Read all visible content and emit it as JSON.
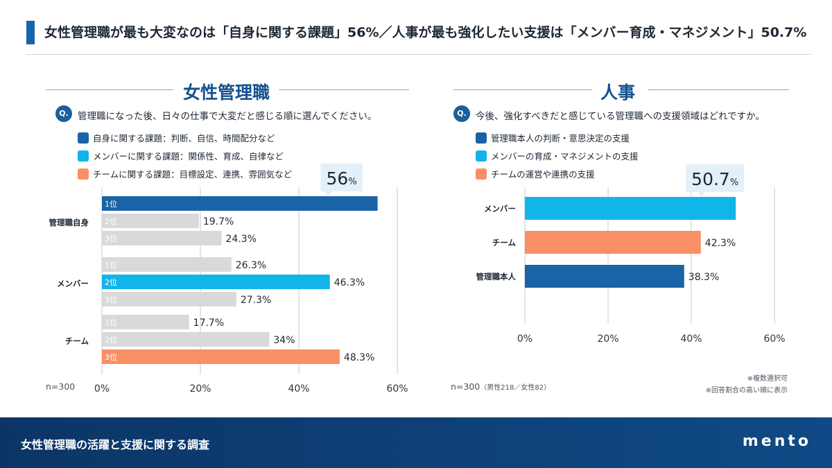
{
  "header": {
    "title": "女性管理職が最も大変なのは「自身に関する課題」56%／人事が最も強化したい支援は「メンバー育成・マネジメント」50.7%"
  },
  "left_panel": {
    "section_title": "女性管理職",
    "question_icon": "Q.",
    "question": "管理職になった後、日々の仕事で大変だと感じる順に選んでください。",
    "legend": [
      {
        "label": "自身に関する課題：判断、自信、時間配分など",
        "color": "#1a63a6"
      },
      {
        "label": "メンバーに関する課題：関係性、育成、自律など",
        "color": "#12b5ea"
      },
      {
        "label": "チームに関する課題：目標設定、連携、雰囲気など",
        "color": "#f98f64"
      }
    ],
    "sample_note": "n=300"
  },
  "right_panel": {
    "section_title": "人事",
    "question_icon": "Q.",
    "question": "今後、強化すべきだと感じている管理職への支援領域はどれですか。",
    "legend": [
      {
        "label": "管理職本人の判断・意思決定の支援",
        "color": "#1a63a6"
      },
      {
        "label": "メンバーの育成・マネジメントの支援",
        "color": "#12b5ea"
      },
      {
        "label": "チームの運営や連携の支援",
        "color": "#f98f64"
      }
    ],
    "sample_note": "n=300",
    "sample_breakdown": "（男性218／女性82）",
    "notes": [
      "※複数選択可",
      "※回答割合の高い順に表示"
    ]
  },
  "footer": {
    "title": "女性管理職の活躍と支援に関する調査",
    "logo": "mento"
  },
  "chart_data": [
    {
      "type": "bar",
      "orientation": "horizontal",
      "title": "女性管理職",
      "xlim": [
        0,
        60
      ],
      "x_ticks": [
        "0%",
        "20%",
        "40%",
        "60%"
      ],
      "groups": [
        {
          "name": "管理職自身",
          "bars": [
            {
              "rank": "1位",
              "value": 56,
              "label": "56",
              "unit": "%",
              "highlight": true,
              "color": "#1a63a6"
            },
            {
              "rank": "2位",
              "value": 19.7,
              "label": "19.7%",
              "highlight": false,
              "color": "#d9d9d9"
            },
            {
              "rank": "3位",
              "value": 24.3,
              "label": "24.3%",
              "highlight": false,
              "color": "#d9d9d9"
            }
          ]
        },
        {
          "name": "メンバー",
          "bars": [
            {
              "rank": "1位",
              "value": 26.3,
              "label": "26.3%",
              "highlight": false,
              "color": "#d9d9d9"
            },
            {
              "rank": "2位",
              "value": 46.3,
              "label": "46.3%",
              "highlight": true,
              "color": "#12b5ea"
            },
            {
              "rank": "3位",
              "value": 27.3,
              "label": "27.3%",
              "highlight": false,
              "color": "#d9d9d9"
            }
          ]
        },
        {
          "name": "チーム",
          "bars": [
            {
              "rank": "1位",
              "value": 17.7,
              "label": "17.7%",
              "highlight": false,
              "color": "#d9d9d9"
            },
            {
              "rank": "2位",
              "value": 34,
              "label": "34%",
              "highlight": false,
              "color": "#d9d9d9"
            },
            {
              "rank": "3位",
              "value": 48.3,
              "label": "48.3%",
              "highlight": true,
              "color": "#f98f64"
            }
          ]
        }
      ]
    },
    {
      "type": "bar",
      "orientation": "horizontal",
      "title": "人事",
      "xlim": [
        0,
        60
      ],
      "x_ticks": [
        "0%",
        "20%",
        "40%",
        "60%"
      ],
      "categories": [
        "メンバー",
        "チーム",
        "管理職本人"
      ],
      "values": [
        50.7,
        42.3,
        38.3
      ],
      "labels": [
        "50.7",
        "42.3%",
        "38.3%"
      ],
      "units": [
        "%",
        "",
        ""
      ],
      "callout": [
        true,
        false,
        false
      ],
      "colors": [
        "#12b5ea",
        "#f98f64",
        "#1a63a6"
      ]
    }
  ]
}
